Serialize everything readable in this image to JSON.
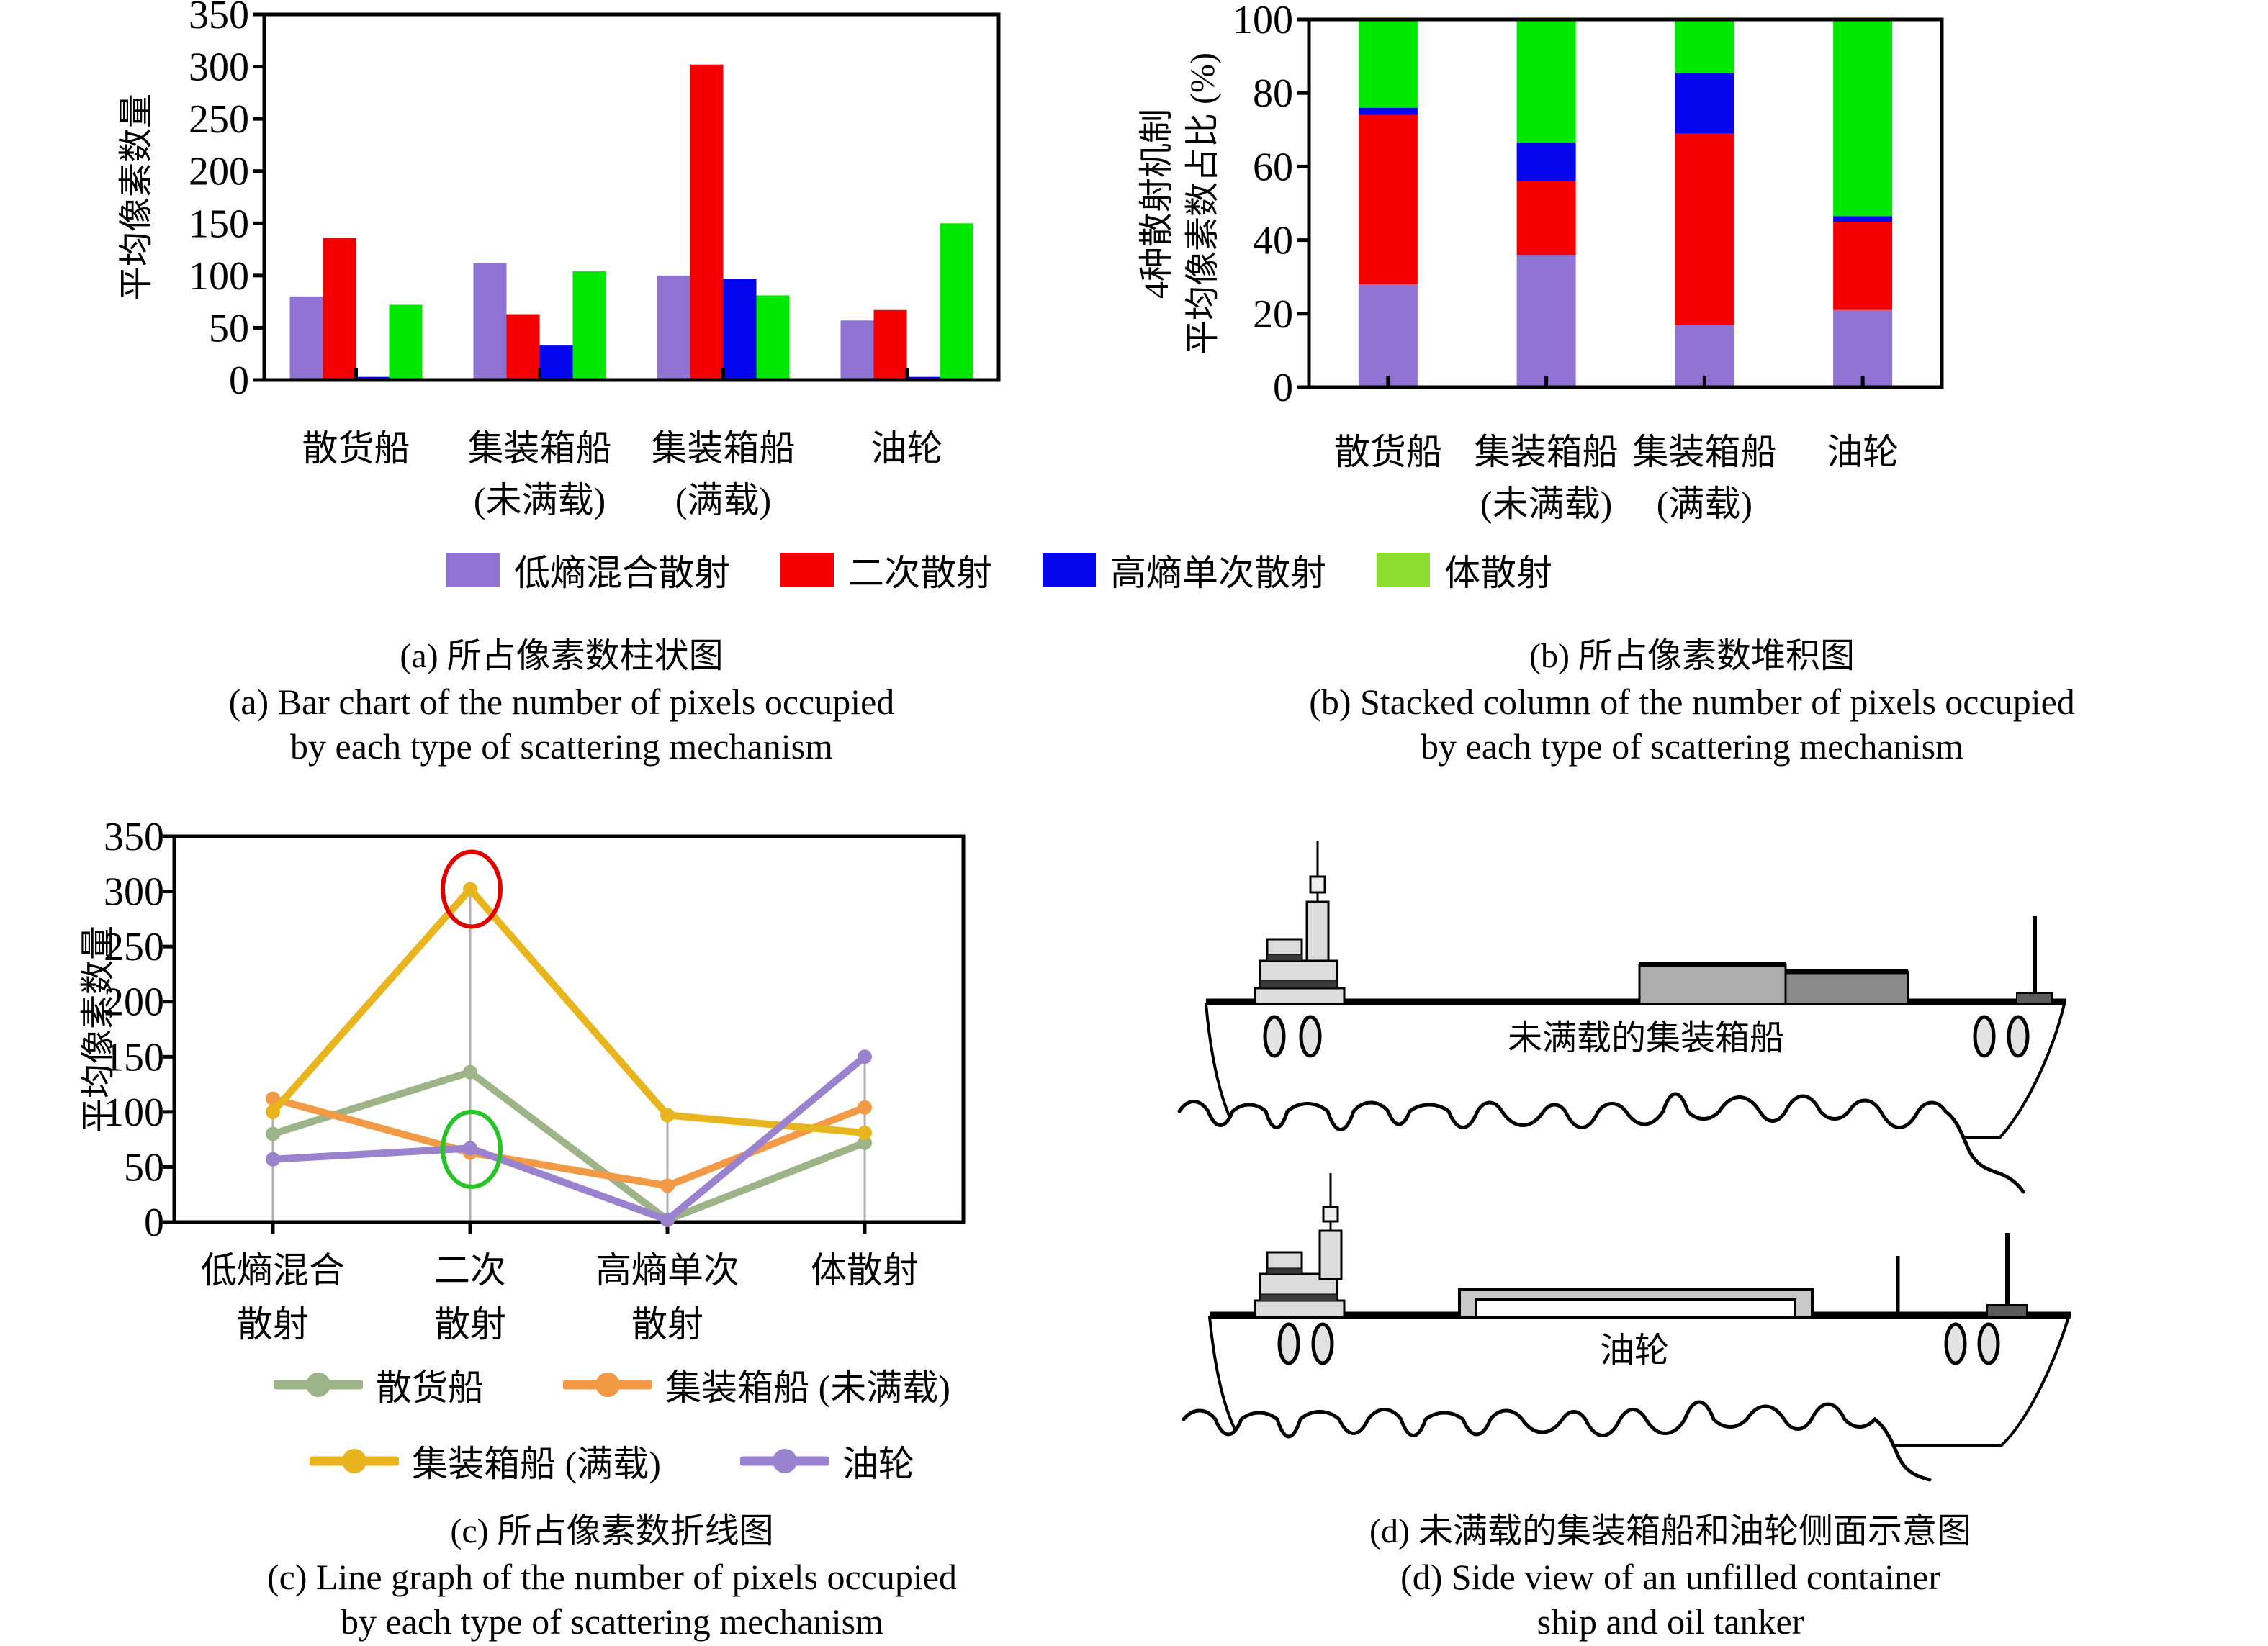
{
  "figure": {
    "background": "#ffffff"
  },
  "legend_mechanisms": {
    "items": [
      {
        "label": "低熵混合散射",
        "color": "#8F72D2"
      },
      {
        "label": "二次散射",
        "color": "#F50000"
      },
      {
        "label": "高熵单次散射",
        "color": "#0505EE"
      },
      {
        "label": "体散射",
        "color": "#8CDD2E"
      }
    ]
  },
  "chart_data": [
    {
      "id": "a",
      "type": "bar",
      "title": "(a) 所占像素数柱状图",
      "ylabel": "平均像素数量",
      "ylim": [
        0,
        350
      ],
      "yticks": [
        0,
        50,
        100,
        150,
        200,
        250,
        300,
        350
      ],
      "grid": false,
      "legend_position": "below-shared",
      "categories": [
        "散货船",
        "集装箱船\n(未满载)",
        "集装箱船\n(满载)",
        "油轮"
      ],
      "series": [
        {
          "name": "低熵混合散射",
          "color": "#8F72D2",
          "values": [
            80,
            112,
            100,
            57
          ]
        },
        {
          "name": "二次散射",
          "color": "#F50000",
          "values": [
            136,
            63,
            302,
            67
          ]
        },
        {
          "name": "高熵单次散射",
          "color": "#0505EE",
          "values": [
            3,
            33,
            97,
            3
          ]
        },
        {
          "name": "体散射",
          "color": "#00E800",
          "values": [
            72,
            104,
            81,
            150
          ]
        }
      ]
    },
    {
      "id": "b",
      "type": "stacked_bar",
      "title": "(b) 所占像素数堆积图",
      "ylabel_lines": [
        "4种散射机制",
        "平均像素数占比 (%)"
      ],
      "ylim": [
        0,
        100
      ],
      "yticks": [
        0,
        20,
        40,
        60,
        80,
        100
      ],
      "grid": false,
      "legend_position": "below-shared",
      "categories": [
        "散货船",
        "集装箱船\n(未满载)",
        "集装箱船\n(满载)",
        "油轮"
      ],
      "series": [
        {
          "name": "低熵混合散射",
          "color": "#8F72D2",
          "values": [
            28,
            36,
            17,
            21
          ]
        },
        {
          "name": "二次散射",
          "color": "#F50000",
          "values": [
            46,
            20,
            52,
            24
          ]
        },
        {
          "name": "高熵单次散射",
          "color": "#0505EE",
          "values": [
            2,
            10.5,
            16.5,
            1.5
          ]
        },
        {
          "name": "体散射",
          "color": "#00E800",
          "values": [
            24,
            33.5,
            14.5,
            53.5
          ]
        }
      ]
    },
    {
      "id": "c",
      "type": "line",
      "title": "(c) 所占像素数折线图",
      "ylabel": "平均像素数量",
      "ylim": [
        0,
        350
      ],
      "yticks": [
        0,
        50,
        100,
        150,
        200,
        250,
        300,
        350
      ],
      "grid": false,
      "legend_position": "below",
      "categories": [
        "低熵混合\n散射",
        "二次\n散射",
        "高熵单次\n散射",
        "体散射"
      ],
      "series": [
        {
          "name": "散货船",
          "color": "#9DB489",
          "values": [
            80,
            136,
            2,
            72
          ]
        },
        {
          "name": "集装箱船 (未满载)",
          "color": "#F29A46",
          "values": [
            112,
            63,
            33,
            104
          ]
        },
        {
          "name": "集装箱船 (满载)",
          "color": "#E9B51E",
          "values": [
            100,
            302,
            97,
            81
          ]
        },
        {
          "name": "油轮",
          "color": "#9B82CE",
          "values": [
            57,
            67,
            2,
            150
          ]
        }
      ],
      "annotations": [
        {
          "type": "ellipse",
          "category_index": 1,
          "value": 302,
          "color": "#E00000"
        },
        {
          "type": "ellipse",
          "category_index": 1,
          "value": 66,
          "color": "#27C427"
        }
      ]
    }
  ],
  "captions": {
    "a_zh": "(a) 所占像素数柱状图",
    "a_en1": "(a) Bar chart of the number of pixels occupied",
    "a_en2": "by each type of scattering mechanism",
    "b_zh": "(b) 所占像素数堆积图",
    "b_en1": "(b) Stacked column of the number of pixels occupied",
    "b_en2": "by each type of scattering mechanism",
    "c_zh": "(c) 所占像素数折线图",
    "c_en1": "(c) Line graph of the number of pixels occupied",
    "c_en2": "by each type of scattering mechanism",
    "d_zh": "(d) 未满载的集装箱船和油轮侧面示意图",
    "d_en1": "(d) Side view of an unfilled container",
    "d_en2": "ship and oil tanker"
  },
  "ships": {
    "container_label": "未满载的集装箱船",
    "tanker_label": "油轮"
  }
}
